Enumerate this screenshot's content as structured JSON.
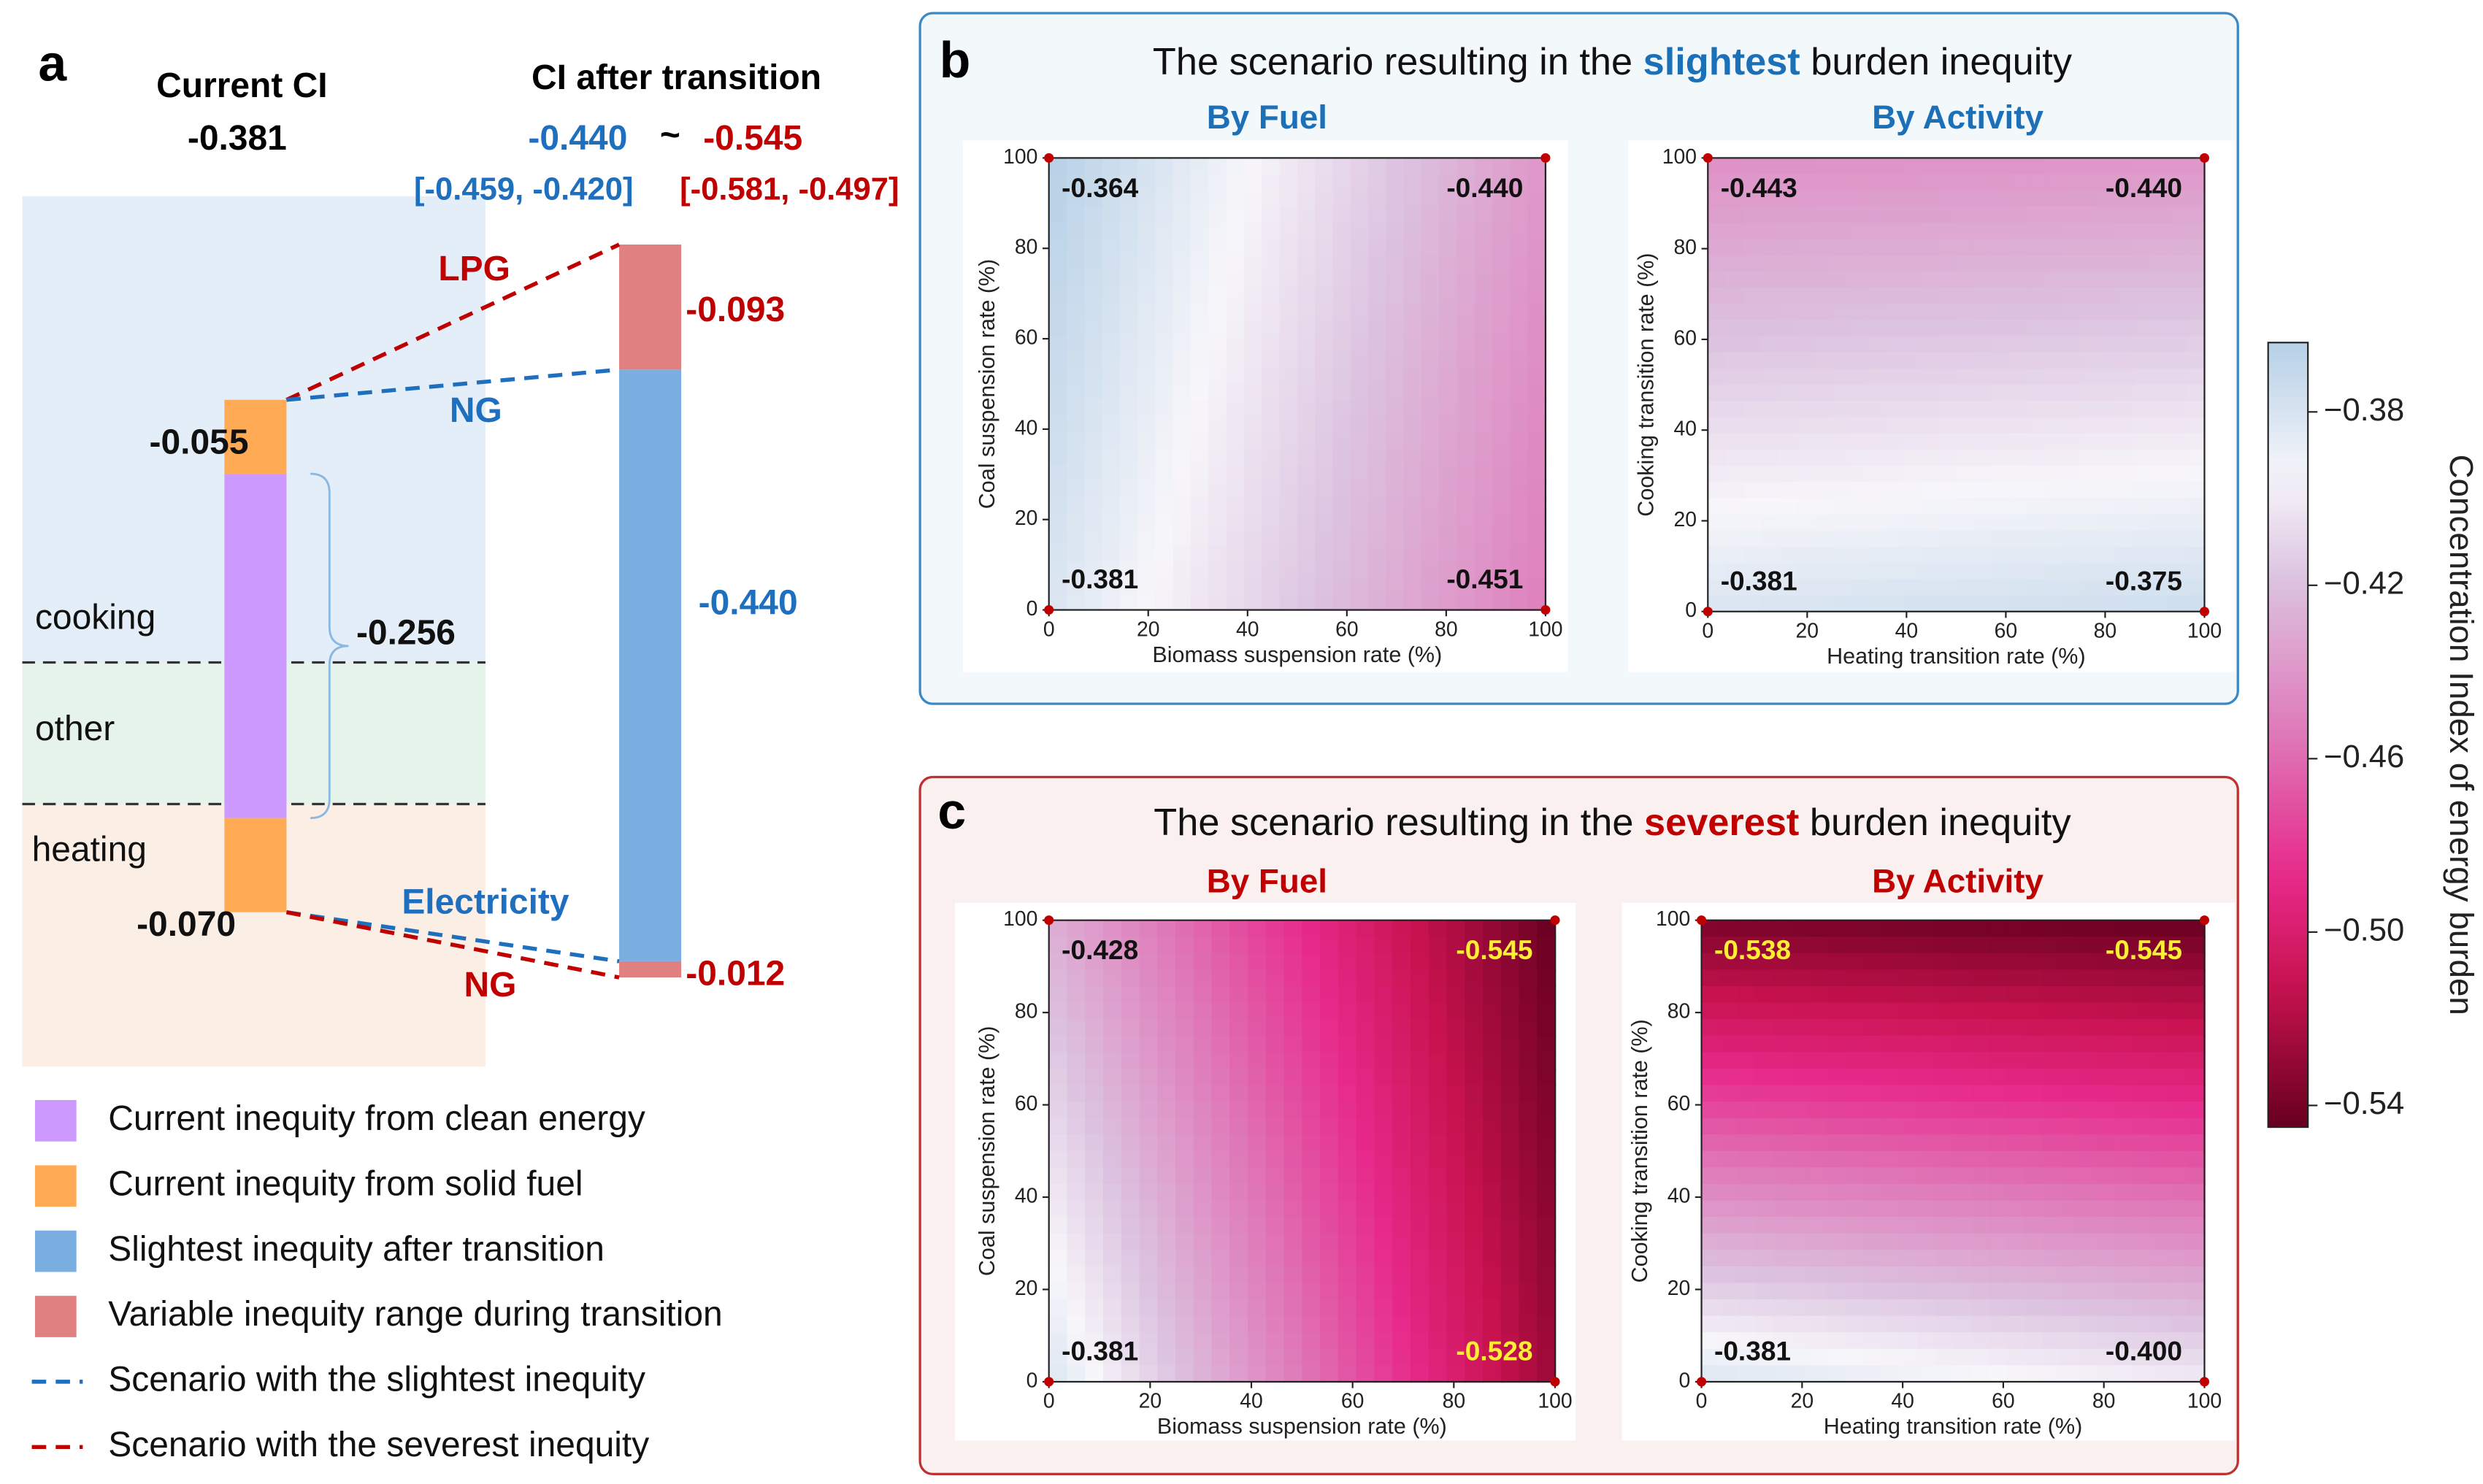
{
  "chart_data": [
    {
      "type": "inequity_bars",
      "panel": "a",
      "current_title": "Current CI",
      "current_value": -0.381,
      "after_title": "CI after transition",
      "after_values": [
        -0.44,
        -0.545
      ],
      "after_value_labels": [
        "-0.440",
        "-0.545"
      ],
      "after_separator": "~",
      "after_intervals": [
        "[-0.459, -0.420]",
        "[-0.581, -0.497]"
      ],
      "regions": [
        "cooking",
        "other",
        "heating"
      ],
      "series": [
        {
          "name": "Current inequity from clean energy",
          "color": "#cc99ff",
          "values": [
            -0.256
          ],
          "value_labels": [
            "-0.256"
          ]
        },
        {
          "name": "Current inequity from solid fuel",
          "color": "#ffaa55",
          "values": [
            -0.055,
            -0.07
          ],
          "value_labels": [
            "-0.055",
            "-0.070"
          ]
        },
        {
          "name": "Slightest inequity after transition",
          "color": "#7aaee0",
          "values": [
            -0.44
          ],
          "value_labels": [
            "-0.440"
          ]
        },
        {
          "name": "Variable inequity range during transition",
          "color": "#e08080",
          "values": [
            -0.093,
            -0.012
          ],
          "value_labels": [
            "-0.093",
            "-0.012"
          ]
        }
      ],
      "lines": [
        {
          "name": "Scenario with the slightest inequity",
          "color": "#1f6fbf",
          "labels": [
            "NG",
            "Electricity"
          ]
        },
        {
          "name": "Scenario with the severest inequity",
          "color": "#c00000",
          "labels": [
            "LPG",
            "NG"
          ]
        }
      ]
    },
    {
      "type": "heatmap",
      "panel": "b",
      "title": [
        "The scenario resulting in the ",
        "slightest",
        " burden inequity"
      ],
      "color": "#1b70b8",
      "plots": [
        {
          "title": "By Fuel",
          "xlabel": "Biomass suspension rate (%)",
          "ylabel": "Coal suspension rate (%)",
          "xlim": [
            0,
            100
          ],
          "xticks": [
            0,
            20,
            40,
            60,
            80,
            100
          ],
          "ylim": [
            0,
            100
          ],
          "yticks": [
            0,
            20,
            40,
            60,
            80,
            100
          ],
          "values": [
            -0.364,
            -0.44,
            -0.381,
            -0.451
          ],
          "value_labels": [
            "-0.364",
            "-0.440",
            "-0.381",
            "-0.451"
          ]
        },
        {
          "title": "By Activity",
          "xlabel": "Heating transition rate (%)",
          "ylabel": "Cooking transition rate (%)",
          "xlim": [
            0,
            100
          ],
          "xticks": [
            0,
            20,
            40,
            60,
            80,
            100
          ],
          "ylim": [
            0,
            100
          ],
          "yticks": [
            0,
            20,
            40,
            60,
            80,
            100
          ],
          "values": [
            -0.443,
            -0.44,
            -0.381,
            -0.375
          ],
          "value_labels": [
            "-0.443",
            "-0.440",
            "-0.381",
            "-0.375"
          ]
        }
      ]
    },
    {
      "type": "heatmap",
      "panel": "c",
      "title": [
        "The scenario resulting in the ",
        "severest",
        " burden inequity"
      ],
      "color": "#c00000",
      "plots": [
        {
          "title": "By Fuel",
          "xlabel": "Biomass suspension rate (%)",
          "ylabel": "Coal suspension rate (%)",
          "xlim": [
            0,
            100
          ],
          "xticks": [
            0,
            20,
            40,
            60,
            80,
            100
          ],
          "ylim": [
            0,
            100
          ],
          "yticks": [
            0,
            20,
            40,
            60,
            80,
            100
          ],
          "values": [
            -0.428,
            -0.545,
            -0.381,
            -0.528
          ],
          "value_labels": [
            "-0.428",
            "-0.545",
            "-0.381",
            "-0.528"
          ]
        },
        {
          "title": "By Activity",
          "xlabel": "Heating transition rate (%)",
          "ylabel": "Cooking transition rate (%)",
          "xlim": [
            0,
            100
          ],
          "xticks": [
            0,
            20,
            40,
            60,
            80,
            100
          ],
          "ylim": [
            0,
            100
          ],
          "yticks": [
            0,
            20,
            40,
            60,
            80,
            100
          ],
          "values": [
            -0.538,
            -0.545,
            -0.381,
            -0.4
          ],
          "value_labels": [
            "-0.538",
            "-0.545",
            "-0.381",
            "-0.400"
          ]
        }
      ]
    },
    {
      "type": "colorbar",
      "label": "Concentration Index of energy burden",
      "clim": [
        -0.545,
        -0.364
      ],
      "ticks": [
        {
          "value": -0.38,
          "label": "−0.38"
        },
        {
          "value": -0.42,
          "label": "−0.42"
        },
        {
          "value": -0.46,
          "label": "−0.46"
        },
        {
          "value": -0.5,
          "label": "−0.50"
        },
        {
          "value": -0.54,
          "label": "−0.54"
        }
      ]
    }
  ]
}
